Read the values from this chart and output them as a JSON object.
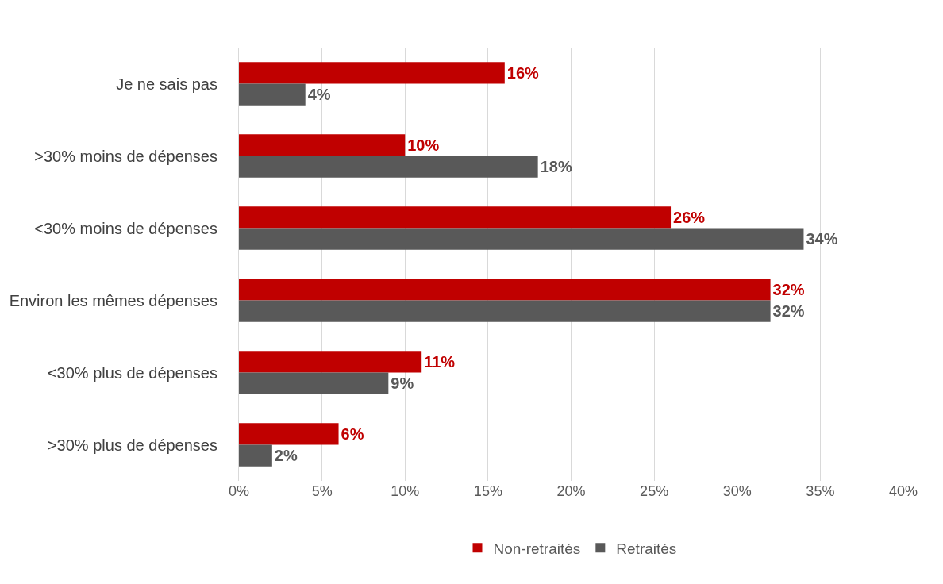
{
  "chart_data": {
    "type": "bar",
    "orientation": "horizontal",
    "categories": [
      "Je ne sais pas",
      ">30% moins de dépenses",
      "<30% moins de dépenses",
      "Environ les mêmes dépenses",
      "<30% plus de dépenses",
      ">30% plus de dépenses"
    ],
    "series": [
      {
        "name": "Non-retraités",
        "color": "#c00000",
        "values": [
          16,
          10,
          26,
          32,
          11,
          6
        ],
        "value_labels": [
          "16%",
          "10%",
          "26%",
          "32%",
          "11%",
          "6%"
        ]
      },
      {
        "name": "Retraités",
        "color": "#595959",
        "values": [
          4,
          18,
          34,
          32,
          9,
          2
        ],
        "value_labels": [
          "4%",
          "18%",
          "34%",
          "32%",
          "9%",
          "2%"
        ]
      }
    ],
    "xlim": [
      0,
      40
    ],
    "xticks": [
      {
        "value": 0,
        "label": "0%"
      },
      {
        "value": 5,
        "label": "5%"
      },
      {
        "value": 10,
        "label": "10%"
      },
      {
        "value": 15,
        "label": "15%"
      },
      {
        "value": 20,
        "label": "20%"
      },
      {
        "value": 25,
        "label": "25%"
      },
      {
        "value": 30,
        "label": "30%"
      },
      {
        "value": 35,
        "label": "35%"
      },
      {
        "value": 40,
        "label": "40%"
      }
    ],
    "grid": "x",
    "legend": "bottom"
  }
}
